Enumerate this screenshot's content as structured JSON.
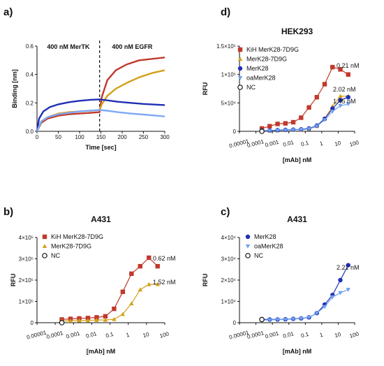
{
  "chart_data": [
    {
      "type": "line",
      "panel": "a)",
      "xlabel": "Time [sec]",
      "ylabel": "Binding [nm]",
      "xlim": [
        0,
        300
      ],
      "ylim": [
        0,
        0.6
      ],
      "xticks": [
        0,
        50,
        100,
        150,
        200,
        250,
        300
      ],
      "yticks": [
        0.0,
        0.2,
        0.4,
        0.6
      ],
      "ytick_labels": [
        "0.0",
        "0.2",
        "0.4",
        "0.6"
      ],
      "annotations": [
        "400 nM MerTK",
        "400 nM EGFR"
      ],
      "divider_x": 147,
      "series": [
        {
          "color": "#c0392b",
          "x": [
            0,
            10,
            25,
            50,
            75,
            100,
            125,
            147,
            152,
            165,
            185,
            210,
            240,
            270,
            300
          ],
          "y": [
            0,
            0.06,
            0.09,
            0.11,
            0.12,
            0.125,
            0.13,
            0.135,
            0.24,
            0.36,
            0.43,
            0.47,
            0.5,
            0.51,
            0.52
          ]
        },
        {
          "color": "#d4a017",
          "x": [
            0,
            10,
            25,
            50,
            75,
            100,
            125,
            147,
            152,
            165,
            185,
            210,
            240,
            270,
            300
          ],
          "y": [
            0,
            0.07,
            0.1,
            0.125,
            0.135,
            0.14,
            0.145,
            0.15,
            0.19,
            0.25,
            0.3,
            0.34,
            0.38,
            0.41,
            0.43
          ]
        },
        {
          "color": "#1f2fb5",
          "x": [
            0,
            5,
            15,
            30,
            50,
            75,
            100,
            125,
            147,
            165,
            190,
            220,
            250,
            280,
            300
          ],
          "y": [
            0,
            0.09,
            0.14,
            0.17,
            0.19,
            0.205,
            0.215,
            0.222,
            0.225,
            0.218,
            0.208,
            0.2,
            0.193,
            0.188,
            0.185
          ]
        },
        {
          "color": "#7fa8f5",
          "x": [
            0,
            10,
            25,
            50,
            75,
            100,
            125,
            147,
            165,
            190,
            220,
            250,
            280,
            300
          ],
          "y": [
            0,
            0.07,
            0.1,
            0.12,
            0.13,
            0.14,
            0.145,
            0.15,
            0.145,
            0.135,
            0.125,
            0.118,
            0.11,
            0.105
          ]
        }
      ]
    },
    {
      "type": "scatter",
      "panel": "d)",
      "title": "HEK293",
      "xlabel": "[mAb] nM",
      "ylabel": "RFU",
      "xscale": "log",
      "xlim": [
        1e-05,
        100
      ],
      "ylim": [
        0,
        150000
      ],
      "xtick_values": [
        1e-05,
        0.0001,
        0.001,
        0.01,
        0.1,
        1,
        10,
        100
      ],
      "xtick_labels": [
        "0.00001",
        "0.0001",
        "0.001",
        "0.01",
        "0.1",
        "1",
        "10",
        "100"
      ],
      "ytick_values": [
        0,
        50000,
        100000,
        150000
      ],
      "ytick_labels": [
        "0",
        "5×10⁴",
        "1×10⁵",
        "1.5×10⁵"
      ],
      "series": [
        {
          "name": "KiH MerK28-7D9G",
          "color": "#c0392b",
          "marker": "square",
          "x": [
            0.000229,
            0.000686,
            0.00206,
            0.00617,
            0.0185,
            0.0556,
            0.167,
            0.5,
            1.5,
            4.5,
            13.5,
            40.5
          ],
          "y": [
            5000,
            9000,
            13000,
            14000,
            16000,
            24000,
            42000,
            60000,
            83000,
            113000,
            109000,
            100000
          ],
          "ec50": "0.21 nM"
        },
        {
          "name": "MerK28-7D9G",
          "color": "#d4a017",
          "marker": "triangle",
          "x": [
            0.000229,
            0.000686,
            0.00206,
            0.00617,
            0.0185,
            0.0556,
            0.167,
            0.5,
            1.5,
            4.5,
            13.5,
            40.5
          ],
          "y": [
            1000,
            1200,
            1500,
            2000,
            2500,
            3000,
            4000,
            9000,
            22000,
            44000,
            62000,
            62000
          ],
          "ec50": "2.02 nM"
        },
        {
          "name": "MerK28",
          "color": "#1f2fb5",
          "marker": "circle",
          "x": [
            0.000229,
            0.000686,
            0.00206,
            0.00617,
            0.0185,
            0.0556,
            0.167,
            0.5,
            1.5,
            4.5,
            13.5,
            40.5
          ],
          "y": [
            1500,
            1500,
            2000,
            2500,
            3000,
            3500,
            5000,
            10000,
            22000,
            40000,
            55000,
            60000
          ],
          "ec50": "1.45 nM"
        },
        {
          "name": "oaMerK28",
          "color": "#6fa0f0",
          "marker": "triangle-down",
          "x": [
            0.000229,
            0.000686,
            0.00206,
            0.00617,
            0.0185,
            0.0556,
            0.167,
            0.5,
            1.5,
            4.5,
            13.5,
            40.5
          ],
          "y": [
            1000,
            1200,
            1500,
            2000,
            2500,
            3000,
            4000,
            9000,
            20000,
            35000,
            45000,
            48000
          ]
        },
        {
          "name": "NC",
          "color": "#111111",
          "marker": "open-circle",
          "x": [
            0.000229
          ],
          "y": [
            0
          ]
        }
      ]
    },
    {
      "type": "scatter",
      "panel": "b)",
      "title": "A431",
      "xlabel": "[mAb] nM",
      "ylabel": "RFU",
      "xscale": "log",
      "xlim": [
        1e-05,
        100
      ],
      "ylim": [
        0,
        400000
      ],
      "xtick_values": [
        1e-05,
        0.0001,
        0.001,
        0.01,
        0.1,
        1,
        10,
        100
      ],
      "xtick_labels": [
        "0.00001",
        "0.0001",
        "0.001",
        "0.01",
        "0.1",
        "1",
        "10",
        "100"
      ],
      "ytick_values": [
        0,
        100000,
        200000,
        300000,
        400000
      ],
      "ytick_labels": [
        "0",
        "1×10⁵",
        "2×10⁵",
        "3×10⁵",
        "4×10⁵"
      ],
      "series": [
        {
          "name": "KiH MerK28-7D9G",
          "color": "#c0392b",
          "marker": "square",
          "x": [
            0.000229,
            0.000686,
            0.00206,
            0.00617,
            0.0185,
            0.0556,
            0.167,
            0.5,
            1.5,
            4.5,
            13.5,
            40.5
          ],
          "y": [
            15000,
            18000,
            20000,
            22000,
            25000,
            30000,
            65000,
            145000,
            230000,
            265000,
            305000,
            265000
          ],
          "ec50": "0.62 nM"
        },
        {
          "name": "MerK28-7D9G",
          "color": "#d4a017",
          "marker": "triangle",
          "x": [
            0.000229,
            0.000686,
            0.00206,
            0.00617,
            0.0185,
            0.0556,
            0.167,
            0.5,
            1.5,
            4.5,
            13.5,
            40.5
          ],
          "y": [
            8000,
            9000,
            10000,
            11000,
            12000,
            13000,
            16000,
            40000,
            90000,
            155000,
            180000,
            180000
          ],
          "ec50": "1.52 nM"
        },
        {
          "name": "NC",
          "color": "#111111",
          "marker": "open-circle",
          "x": [
            0.000229
          ],
          "y": [
            0
          ]
        }
      ]
    },
    {
      "type": "scatter",
      "panel": "c)",
      "title": "A431",
      "xlabel": "[mAb] nM",
      "ylabel": "RFU",
      "xscale": "log",
      "xlim": [
        1e-05,
        100
      ],
      "ylim": [
        0,
        40000
      ],
      "xtick_values": [
        1e-05,
        0.0001,
        0.001,
        0.01,
        0.1,
        1,
        10,
        100
      ],
      "xtick_labels": [
        "0.00001",
        "0.0001",
        "0.001",
        "0.01",
        "0.1",
        "1",
        "10",
        "100"
      ],
      "ytick_values": [
        0,
        10000,
        20000,
        30000,
        40000
      ],
      "ytick_labels": [
        "0",
        "1×10⁴",
        "2×10⁴",
        "3×10⁴",
        "4×10⁴"
      ],
      "series": [
        {
          "name": "MerK28",
          "color": "#1f2fb5",
          "marker": "circle",
          "x": [
            0.000229,
            0.000686,
            0.00206,
            0.00617,
            0.0185,
            0.0556,
            0.167,
            0.5,
            1.5,
            4.5,
            13.5,
            40.5
          ],
          "y": [
            1500,
            1500,
            1500,
            1600,
            1800,
            2000,
            2500,
            4500,
            8500,
            13000,
            20000,
            27000
          ],
          "ec50": "2.21 nM"
        },
        {
          "name": "oaMerK28",
          "color": "#6fa0f0",
          "marker": "triangle-down",
          "x": [
            0.000229,
            0.000686,
            0.00206,
            0.00617,
            0.0185,
            0.0556,
            0.167,
            0.5,
            1.5,
            4.5,
            13.5,
            40.5
          ],
          "y": [
            1200,
            1300,
            1400,
            1500,
            1700,
            1900,
            2500,
            4500,
            7500,
            12000,
            14000,
            15500
          ]
        },
        {
          "name": "NC",
          "color": "#111111",
          "marker": "open-circle",
          "x": [
            0.000229
          ],
          "y": [
            1500
          ]
        }
      ]
    }
  ]
}
